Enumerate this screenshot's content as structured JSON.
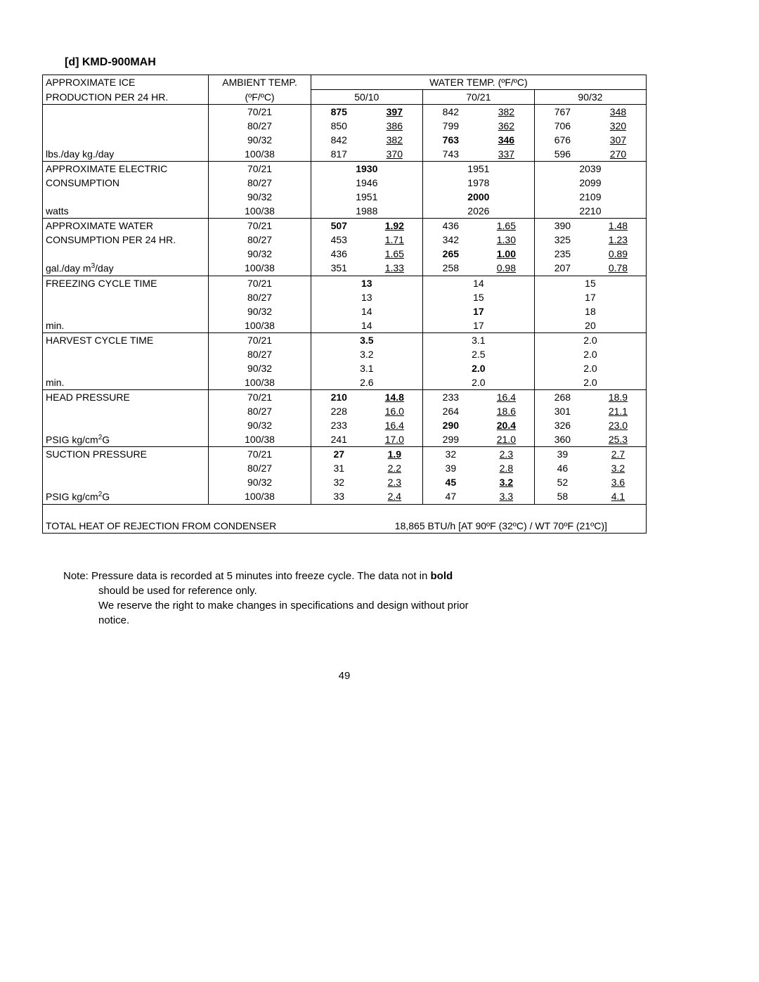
{
  "title": "[d] KMD-900MAH",
  "header": {
    "approx_ice_line1": "APPROXIMATE ICE",
    "approx_ice_line2": "PRODUCTION PER 24 HR.",
    "ambient_temp_line1": "AMBIENT TEMP.",
    "ambient_temp_line2": "(ºF/ºC)",
    "water_temp": "WATER TEMP. (ºF/ºC)",
    "wt1": "50/10",
    "wt2": "70/21",
    "wt3": "90/32"
  },
  "ambient": [
    "70/21",
    "80/27",
    "90/32",
    "100/38"
  ],
  "sections": {
    "ice": {
      "unit": "lbs./day   kg./day",
      "rows": [
        {
          "a": "70/21",
          "v1": "875",
          "u1": "397",
          "v2": "842",
          "u2": "382",
          "v3": "767",
          "u3": "348",
          "bold": true
        },
        {
          "a": "80/27",
          "v1": "850",
          "u1": "386",
          "v2": "799",
          "u2": "362",
          "v3": "706",
          "u3": "320"
        },
        {
          "a": "90/32",
          "v1": "842",
          "u1": "382",
          "v2": "763",
          "u2": "346",
          "v3": "676",
          "u3": "307",
          "bold2": true
        },
        {
          "a": "100/38",
          "v1": "817",
          "u1": "370",
          "v2": "743",
          "u2": "337",
          "v3": "596",
          "u3": "270"
        }
      ]
    },
    "electric": {
      "title1": "APPROXIMATE ELECTRIC",
      "title2": "CONSUMPTION",
      "unit": "watts",
      "rows": [
        {
          "a": "70/21",
          "w1": "1930",
          "w2": "1951",
          "w3": "2039",
          "bold": true
        },
        {
          "a": "80/27",
          "w1": "1946",
          "w2": "1978",
          "w3": "2099"
        },
        {
          "a": "90/32",
          "w1": "1951",
          "w2": "2000",
          "w3": "2109",
          "bold2": true
        },
        {
          "a": "100/38",
          "w1": "1988",
          "w2": "2026",
          "w3": "2210"
        }
      ]
    },
    "water": {
      "title1": "APPROXIMATE WATER",
      "title2": "CONSUMPTION PER 24 HR.",
      "unit_html": "gal./day   m<sup>3</sup>/day",
      "rows": [
        {
          "a": "70/21",
          "v1": "507",
          "u1": "1.92",
          "v2": "436",
          "u2": "1.65",
          "v3": "390",
          "u3": "1.48",
          "bold": true
        },
        {
          "a": "80/27",
          "v1": "453",
          "u1": "1.71",
          "v2": "342",
          "u2": "1.30",
          "v3": "325",
          "u3": "1.23"
        },
        {
          "a": "90/32",
          "v1": "436",
          "u1": "1.65",
          "v2": "265",
          "u2": "1.00",
          "v3": "235",
          "u3": "0.89",
          "bold2": true
        },
        {
          "a": "100/38",
          "v1": "351",
          "u1": "1.33",
          "v2": "258",
          "u2": "0.98",
          "v3": "207",
          "u3": "0.78"
        }
      ]
    },
    "freeze": {
      "title": "FREEZING CYCLE TIME",
      "unit": "min.",
      "rows": [
        {
          "a": "70/21",
          "w1": "13",
          "w2": "14",
          "w3": "15",
          "bold": true
        },
        {
          "a": "80/27",
          "w1": "13",
          "w2": "15",
          "w3": "17"
        },
        {
          "a": "90/32",
          "w1": "14",
          "w2": "17",
          "w3": "18",
          "bold2": true
        },
        {
          "a": "100/38",
          "w1": "14",
          "w2": "17",
          "w3": "20"
        }
      ]
    },
    "harvest": {
      "title": "HARVEST CYCLE TIME",
      "unit": "min.",
      "rows": [
        {
          "a": "70/21",
          "w1": "3.5",
          "w2": "3.1",
          "w3": "2.0",
          "bold": true
        },
        {
          "a": "80/27",
          "w1": "3.2",
          "w2": "2.5",
          "w3": "2.0"
        },
        {
          "a": "90/32",
          "w1": "3.1",
          "w2": "2.0",
          "w3": "2.0",
          "bold2": true
        },
        {
          "a": "100/38",
          "w1": "2.6",
          "w2": "2.0",
          "w3": "2.0"
        }
      ]
    },
    "head": {
      "title": "HEAD PRESSURE",
      "unit_html": "PSIG     kg/cm<sup>2</sup>G",
      "rows": [
        {
          "a": "70/21",
          "v1": "210",
          "u1": "14.8",
          "v2": "233",
          "u2": "16.4",
          "v3": "268",
          "u3": "18.9",
          "bold": true
        },
        {
          "a": "80/27",
          "v1": "228",
          "u1": "16.0",
          "v2": "264",
          "u2": "18.6",
          "v3": "301",
          "u3": "21.1"
        },
        {
          "a": "90/32",
          "v1": "233",
          "u1": "16.4",
          "v2": "290",
          "u2": "20.4",
          "v3": "326",
          "u3": "23.0",
          "bold2": true
        },
        {
          "a": "100/38",
          "v1": "241",
          "u1": "17.0",
          "v2": "299",
          "u2": "21.0",
          "v3": "360",
          "u3": "25.3"
        }
      ]
    },
    "suction": {
      "title": "SUCTION PRESSURE",
      "unit_html": "PSIG     kg/cm<sup>2</sup>G",
      "rows": [
        {
          "a": "70/21",
          "v1": "27",
          "u1": "1.9",
          "v2": "32",
          "u2": "2.3",
          "v3": "39",
          "u3": "2.7",
          "bold": true
        },
        {
          "a": "80/27",
          "v1": "31",
          "u1": "2.2",
          "v2": "39",
          "u2": "2.8",
          "v3": "46",
          "u3": "3.2"
        },
        {
          "a": "90/32",
          "v1": "32",
          "u1": "2.3",
          "v2": "45",
          "u2": "3.2",
          "v3": "52",
          "u3": "3.6",
          "bold2": true
        },
        {
          "a": "100/38",
          "v1": "33",
          "u1": "2.4",
          "v2": "47",
          "u2": "3.3",
          "v3": "58",
          "u3": "4.1"
        }
      ]
    }
  },
  "footer": {
    "label": "TOTAL HEAT OF REJECTION FROM CONDENSER",
    "value": "18,865 BTU/h  [AT 90ºF (32ºC) / WT 70ºF (21ºC)]"
  },
  "note_prefix": "Note: Pressure data is recorded at 5 minutes into freeze cycle. The data not in ",
  "note_bold": "bold",
  "note_line2": "should be used for reference only.",
  "note_line3": "We reserve the right to make changes in specifications and design without prior",
  "note_line4": "notice.",
  "page": "49"
}
